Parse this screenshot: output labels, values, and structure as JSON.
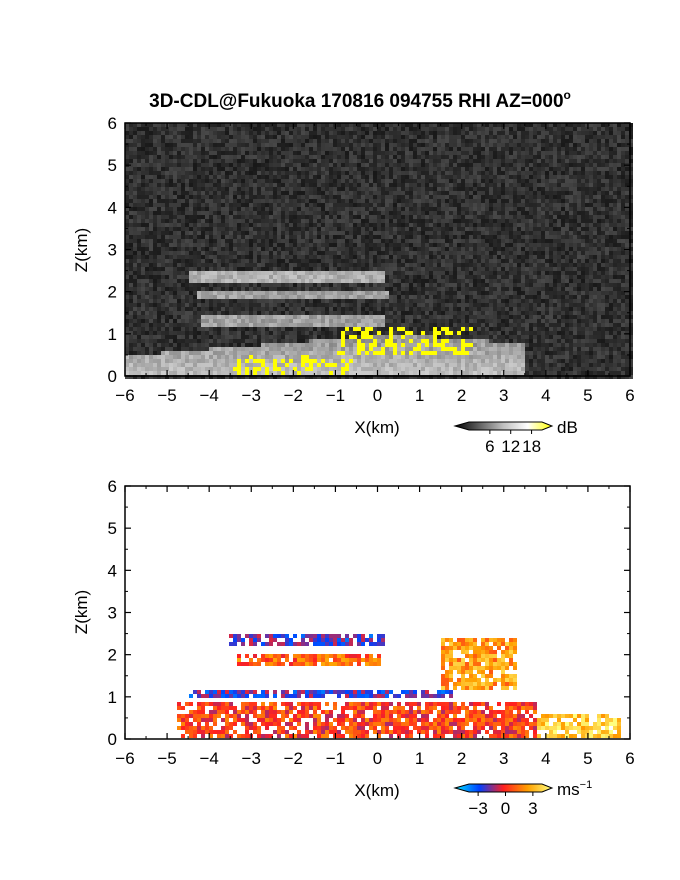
{
  "title": "3D-CDL@Fukuoka 170816 094755 RHI AZ=000°",
  "title_main": "3D-CDL@Fukuoka 170816 094755 RHI AZ=000",
  "title_degree": "o",
  "chart_data": [
    {
      "type": "heatmap",
      "panel": "top",
      "quantity": "reflectivity / SNR",
      "xlabel": "X(km)",
      "ylabel": "Z(km)",
      "xlim": [
        -6,
        6
      ],
      "ylim": [
        0,
        6
      ],
      "x_ticks": [
        -6,
        -5,
        -4,
        -3,
        -2,
        -1,
        0,
        1,
        2,
        3,
        4,
        5,
        6
      ],
      "y_ticks": [
        0,
        1,
        2,
        3,
        4,
        5,
        6
      ],
      "grid": false,
      "colorbar": {
        "unit": "dB",
        "ticks": [
          6,
          12,
          18
        ],
        "range": [
          0,
          21
        ],
        "colormap": [
          "#000000",
          "#606060",
          "#c0c0c0",
          "#ffffff",
          "#ffff00"
        ],
        "placement": "below-right"
      },
      "features": [
        {
          "name": "noise background",
          "x": [
            -6,
            6
          ],
          "z": [
            0,
            6
          ],
          "value_db": 3
        },
        {
          "name": "near-ground echo",
          "x": [
            -6,
            3.5
          ],
          "z": [
            0,
            1.0
          ],
          "value_db": 12
        },
        {
          "name": "upper layer",
          "x": [
            -4.5,
            0.2
          ],
          "z": [
            2.2,
            2.45
          ],
          "value_db": 11
        },
        {
          "name": "mid layer",
          "x": [
            -4.3,
            0.3
          ],
          "z": [
            1.8,
            2.05
          ],
          "value_db": 10
        },
        {
          "name": "lower layer",
          "x": [
            -4.2,
            0.2
          ],
          "z": [
            1.2,
            1.45
          ],
          "value_db": 10
        },
        {
          "name": "saturated near field",
          "x": [
            -1,
            2.3
          ],
          "z": [
            0.5,
            1.2
          ],
          "value_db": 19
        },
        {
          "name": "ground clutter streak",
          "x": [
            -3.5,
            -0.6
          ],
          "z": [
            0,
            0.5
          ],
          "value_db": 19
        }
      ]
    },
    {
      "type": "heatmap",
      "panel": "bottom",
      "quantity": "Doppler velocity",
      "xlabel": "X(km)",
      "ylabel": "Z(km)",
      "xlim": [
        -6,
        6
      ],
      "ylim": [
        0,
        6
      ],
      "x_ticks": [
        -6,
        -5,
        -4,
        -3,
        -2,
        -1,
        0,
        1,
        2,
        3,
        4,
        5,
        6
      ],
      "y_ticks": [
        0,
        1,
        2,
        3,
        4,
        5,
        6
      ],
      "grid": false,
      "colorbar": {
        "unit": "ms",
        "unit_sup": "−1",
        "ticks": [
          -3,
          0,
          3
        ],
        "tick_labels": [
          "−3",
          "0",
          "3"
        ],
        "range": [
          -4,
          4
        ],
        "colormap": [
          "#00e5ff",
          "#0040ff",
          "#ff2020",
          "#ffa000",
          "#ffff80"
        ],
        "placement": "below-right"
      },
      "features": [
        {
          "name": "upper layer",
          "x": [
            -3.5,
            0.2
          ],
          "z": [
            2.25,
            2.5
          ],
          "velocity_ms": -1.5
        },
        {
          "name": "mid layer",
          "x": [
            -3.3,
            0.1
          ],
          "z": [
            1.75,
            2.05
          ],
          "velocity_ms": 1.0
        },
        {
          "name": "low layer",
          "x": [
            -4.5,
            1.8
          ],
          "z": [
            0.95,
            1.2
          ],
          "velocity_ms": -1.5
        },
        {
          "name": "boundary layer",
          "x": [
            -4.8,
            3.8
          ],
          "z": [
            0.05,
            0.9
          ],
          "velocity_ms": 0.5
        },
        {
          "name": "sloping plume",
          "x": [
            1.5,
            3.3
          ],
          "z": [
            1.2,
            2.4
          ],
          "velocity_ms": 2.0
        },
        {
          "name": "far field",
          "x": [
            3.8,
            5.8
          ],
          "z": [
            0,
            0.6
          ],
          "velocity_ms": 3.0
        }
      ]
    }
  ]
}
